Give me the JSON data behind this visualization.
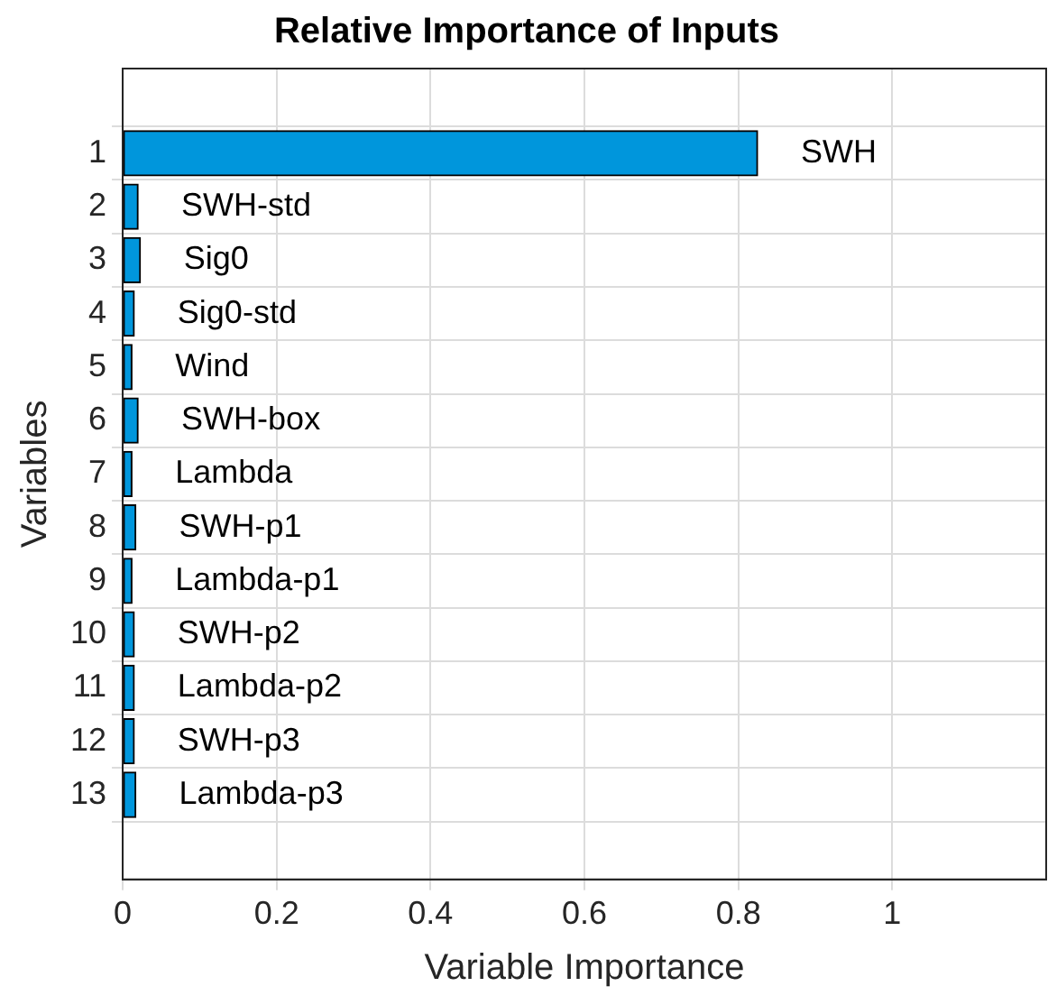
{
  "chart_data": {
    "type": "bar",
    "orientation": "horizontal",
    "title": "Relative Importance of Inputs",
    "xlabel": "Variable Importance",
    "ylabel": "Variables",
    "categories": [
      "1",
      "2",
      "3",
      "4",
      "5",
      "6",
      "7",
      "8",
      "9",
      "10",
      "11",
      "12",
      "13"
    ],
    "values": [
      0.825,
      0.02,
      0.023,
      0.015,
      0.012,
      0.02,
      0.012,
      0.017,
      0.012,
      0.015,
      0.015,
      0.015,
      0.017
    ],
    "color": "#0096dc",
    "xlim": [
      0,
      1.2
    ],
    "xticks": [
      0,
      0.2,
      0.4,
      0.6,
      0.8,
      1
    ],
    "grid": true,
    "annotations": [
      "SWH",
      "SWH-std",
      "Sig0",
      "Sig0-std",
      "Wind",
      "SWH-box",
      "Lambda",
      "SWH-p1",
      "Lambda-p1",
      "SWH-p2",
      "Lambda-p2",
      "SWH-p3",
      "Lambda-p3"
    ]
  }
}
